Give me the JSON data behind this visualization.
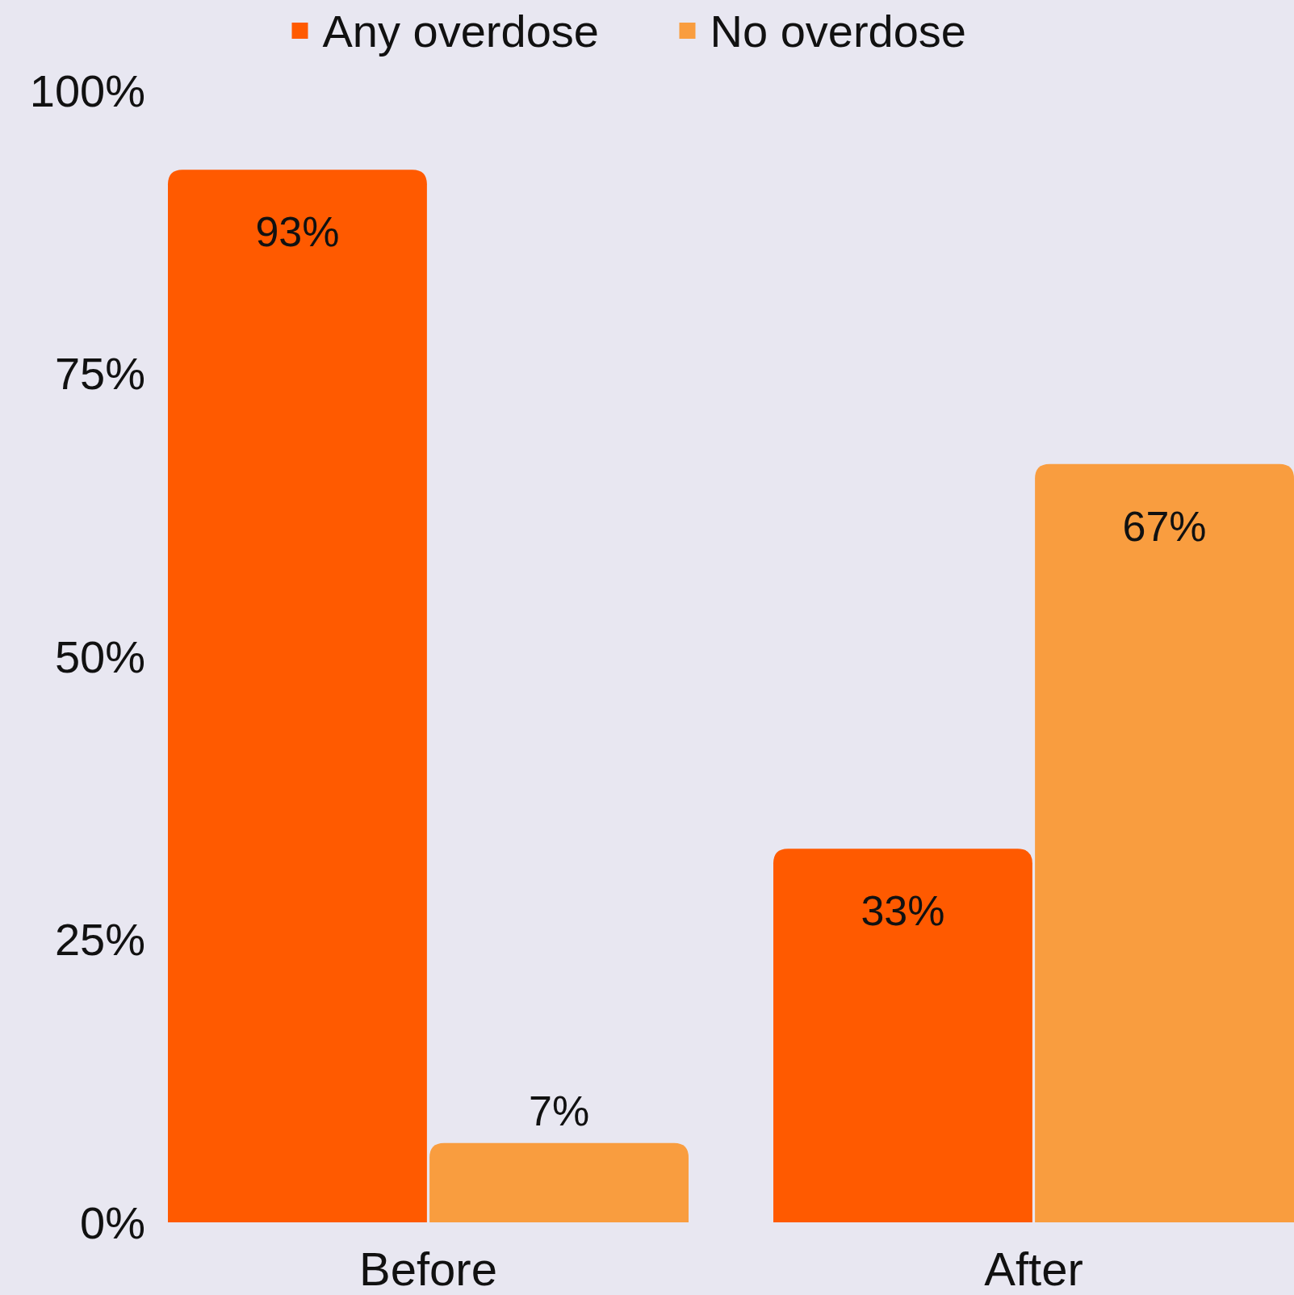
{
  "chart_data": {
    "type": "bar",
    "categories": [
      "Before",
      "After"
    ],
    "series": [
      {
        "name": "Any overdose",
        "color": "#ff5a00",
        "values": [
          93,
          33
        ],
        "value_labels": [
          "93%",
          "33%"
        ]
      },
      {
        "name": "No overdose",
        "color": "#f99d3f",
        "values": [
          7,
          67
        ],
        "value_labels": [
          "7%",
          "67%"
        ]
      }
    ],
    "ylim": [
      0,
      100
    ],
    "yticks": [
      {
        "value": 0,
        "label": "0%"
      },
      {
        "value": 25,
        "label": "25%"
      },
      {
        "value": 50,
        "label": "50%"
      },
      {
        "value": 75,
        "label": "75%"
      },
      {
        "value": 100,
        "label": "100%"
      }
    ],
    "grid": false,
    "legend": "top"
  }
}
